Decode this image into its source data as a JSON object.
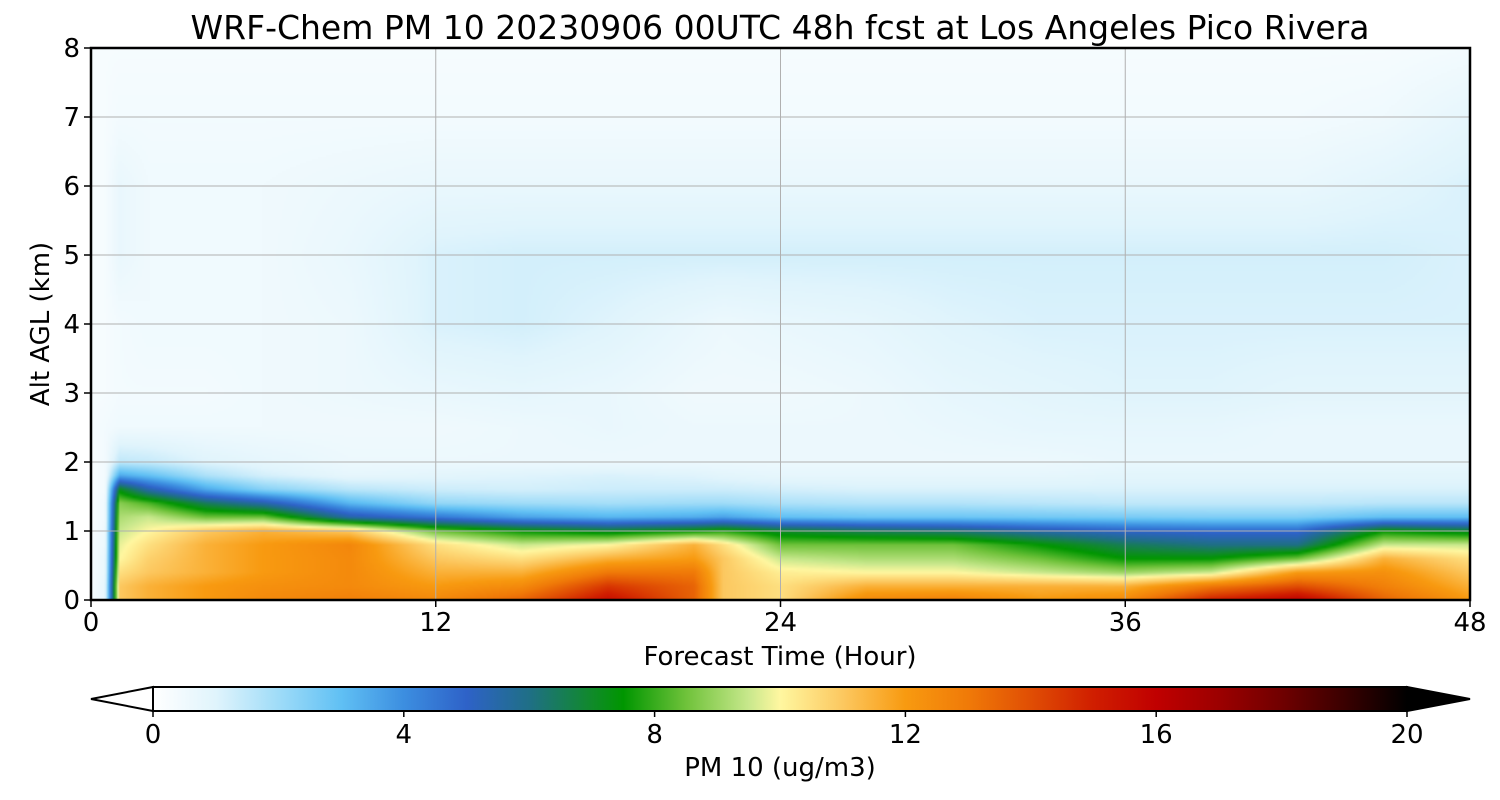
{
  "chart_data": {
    "type": "heatmap",
    "title": "WRF-Chem PM 10  20230906 00UTC 48h fcst at Los Angeles Pico Rivera",
    "xlabel": "Forecast Time (Hour)",
    "ylabel": "Alt AGL (km)",
    "xlim": [
      0,
      48
    ],
    "ylim": [
      0,
      8
    ],
    "x_ticks": [
      0,
      12,
      24,
      36,
      48
    ],
    "y_ticks": [
      0,
      1,
      2,
      3,
      4,
      5,
      6,
      7,
      8
    ],
    "grid": true,
    "colorbar": {
      "label": "PM 10  (ug/m3)",
      "range": [
        0,
        20
      ],
      "ticks": [
        0,
        4,
        8,
        12,
        16,
        20
      ],
      "extend": "both",
      "orientation": "horizontal",
      "stops": [
        {
          "v": 0,
          "c": "#ffffff"
        },
        {
          "v": 1,
          "c": "#e0f4fc"
        },
        {
          "v": 2,
          "c": "#9fdcf8"
        },
        {
          "v": 3,
          "c": "#60c0f4"
        },
        {
          "v": 4,
          "c": "#3c8ee0"
        },
        {
          "v": 5,
          "c": "#2e62c8"
        },
        {
          "v": 6,
          "c": "#1f6f86"
        },
        {
          "v": 7,
          "c": "#108a2a"
        },
        {
          "v": 7.5,
          "c": "#009600"
        },
        {
          "v": 8.5,
          "c": "#6fc23a"
        },
        {
          "v": 9.5,
          "c": "#c8e88c"
        },
        {
          "v": 10,
          "c": "#fff7a0"
        },
        {
          "v": 11,
          "c": "#fcc860"
        },
        {
          "v": 12,
          "c": "#f89a10"
        },
        {
          "v": 13,
          "c": "#f07a08"
        },
        {
          "v": 14,
          "c": "#e04e04"
        },
        {
          "v": 15,
          "c": "#d01e00"
        },
        {
          "v": 16,
          "c": "#c00000"
        },
        {
          "v": 17,
          "c": "#9c0000"
        },
        {
          "v": 18,
          "c": "#700000"
        },
        {
          "v": 19,
          "c": "#3a0000"
        },
        {
          "v": 20,
          "c": "#000000"
        }
      ]
    },
    "x": [
      0,
      0.5,
      1,
      2,
      4,
      6,
      9,
      12,
      15,
      18,
      21,
      22,
      24,
      27,
      30,
      33,
      36,
      39,
      42,
      45,
      48
    ],
    "y": [
      0,
      0.2,
      0.4,
      0.6,
      0.8,
      1.0,
      1.2,
      1.4,
      1.6,
      1.8,
      2.0,
      2.5,
      3,
      4,
      5,
      6,
      7,
      8
    ],
    "z": [
      [
        0.3,
        0.8,
        11.0,
        11.5,
        12.0,
        12.5,
        12.8,
        12.5,
        13.5,
        15.5,
        13.5,
        11.0,
        10.5,
        12.5,
        12.8,
        12.0,
        12.5,
        15.0,
        16.0,
        13.5,
        12.0
      ],
      [
        0.3,
        0.8,
        11.0,
        11.5,
        12.0,
        12.3,
        12.5,
        12.0,
        12.5,
        14.5,
        13.5,
        11.0,
        10.5,
        11.5,
        11.5,
        11.5,
        11.5,
        13.0,
        14.0,
        12.8,
        11.5
      ],
      [
        0.3,
        0.7,
        10.5,
        11.0,
        11.5,
        12.0,
        12.5,
        11.5,
        11.5,
        13.0,
        13.0,
        11.0,
        10.2,
        10.0,
        10.0,
        9.5,
        9.0,
        9.5,
        12.0,
        12.3,
        11.0
      ],
      [
        0.3,
        0.7,
        10.0,
        10.8,
        11.5,
        12.0,
        12.5,
        11.0,
        10.5,
        11.5,
        12.0,
        11.0,
        9.5,
        9.2,
        9.2,
        8.5,
        7.5,
        7.5,
        8.5,
        11.5,
        10.5
      ],
      [
        0.3,
        0.6,
        9.8,
        10.5,
        11.5,
        12.0,
        12.6,
        10.5,
        9.5,
        10.0,
        11.5,
        10.5,
        8.5,
        8.5,
        8.5,
        7.5,
        6.5,
        6.0,
        6.0,
        9.5,
        9.5
      ],
      [
        0.2,
        0.6,
        9.5,
        10.0,
        11.0,
        11.5,
        11.0,
        8.5,
        7.5,
        7.0,
        7.5,
        7.8,
        7.0,
        6.5,
        6.2,
        5.5,
        5.0,
        4.8,
        4.8,
        7.5,
        7.0
      ],
      [
        0.2,
        0.5,
        9.2,
        9.5,
        8.5,
        8.5,
        5.5,
        4.5,
        3.6,
        3.2,
        3.4,
        3.6,
        3.0,
        2.8,
        2.8,
        2.7,
        2.6,
        2.5,
        2.5,
        3.0,
        3.0
      ],
      [
        0.2,
        0.5,
        8.8,
        8.2,
        6.5,
        5.5,
        3.2,
        2.2,
        2.0,
        1.9,
        2.0,
        2.0,
        1.8,
        1.7,
        1.7,
        1.6,
        1.5,
        1.5,
        1.5,
        1.6,
        1.6
      ],
      [
        0.2,
        0.4,
        7.2,
        5.5,
        3.5,
        2.4,
        1.6,
        1.3,
        1.2,
        1.3,
        1.3,
        1.3,
        1.2,
        1.1,
        1.1,
        1.1,
        1.1,
        1.1,
        1.1,
        1.1,
        1.1
      ],
      [
        0.2,
        0.4,
        3.5,
        3.0,
        1.8,
        1.2,
        0.8,
        0.9,
        1.0,
        1.1,
        1.0,
        0.9,
        0.8,
        0.8,
        0.8,
        0.8,
        0.9,
        0.9,
        0.9,
        0.9,
        0.9
      ],
      [
        0.2,
        0.4,
        1.5,
        1.4,
        1.0,
        0.8,
        0.6,
        0.6,
        0.6,
        0.6,
        0.6,
        0.6,
        0.6,
        0.6,
        0.6,
        0.6,
        0.7,
        0.7,
        0.7,
        0.7,
        0.7
      ],
      [
        0.3,
        0.4,
        0.5,
        0.5,
        0.5,
        0.5,
        0.5,
        0.5,
        0.6,
        0.7,
        0.6,
        0.6,
        0.6,
        0.6,
        0.7,
        0.8,
        0.8,
        0.8,
        0.7,
        0.7,
        0.7
      ],
      [
        0.3,
        0.3,
        0.4,
        0.4,
        0.4,
        0.5,
        0.6,
        0.7,
        0.8,
        0.7,
        0.5,
        0.5,
        0.5,
        0.6,
        0.8,
        0.9,
        1.0,
        1.0,
        0.9,
        0.9,
        0.9
      ],
      [
        0.3,
        0.3,
        0.4,
        0.5,
        0.5,
        0.5,
        0.6,
        1.1,
        1.2,
        1.0,
        0.7,
        0.6,
        0.7,
        0.8,
        1.0,
        1.1,
        1.1,
        1.1,
        1.1,
        1.1,
        1.1
      ],
      [
        0.3,
        0.3,
        0.7,
        0.5,
        0.5,
        0.5,
        0.7,
        1.1,
        1.2,
        1.2,
        1.2,
        1.2,
        1.2,
        1.2,
        1.2,
        1.2,
        1.2,
        1.2,
        1.2,
        1.2,
        1.1
      ],
      [
        0.3,
        0.3,
        0.7,
        0.5,
        0.5,
        0.5,
        0.6,
        0.7,
        0.7,
        0.7,
        0.7,
        0.7,
        0.7,
        0.7,
        0.7,
        0.7,
        0.7,
        0.7,
        0.7,
        0.9,
        1.1
      ],
      [
        0.3,
        0.3,
        0.4,
        0.4,
        0.4,
        0.4,
        0.4,
        0.4,
        0.4,
        0.4,
        0.4,
        0.4,
        0.4,
        0.4,
        0.4,
        0.4,
        0.4,
        0.4,
        0.4,
        0.5,
        0.8
      ],
      [
        0.3,
        0.3,
        0.3,
        0.3,
        0.3,
        0.3,
        0.3,
        0.3,
        0.3,
        0.3,
        0.3,
        0.3,
        0.3,
        0.3,
        0.3,
        0.3,
        0.3,
        0.3,
        0.3,
        0.3,
        0.4
      ]
    ]
  }
}
